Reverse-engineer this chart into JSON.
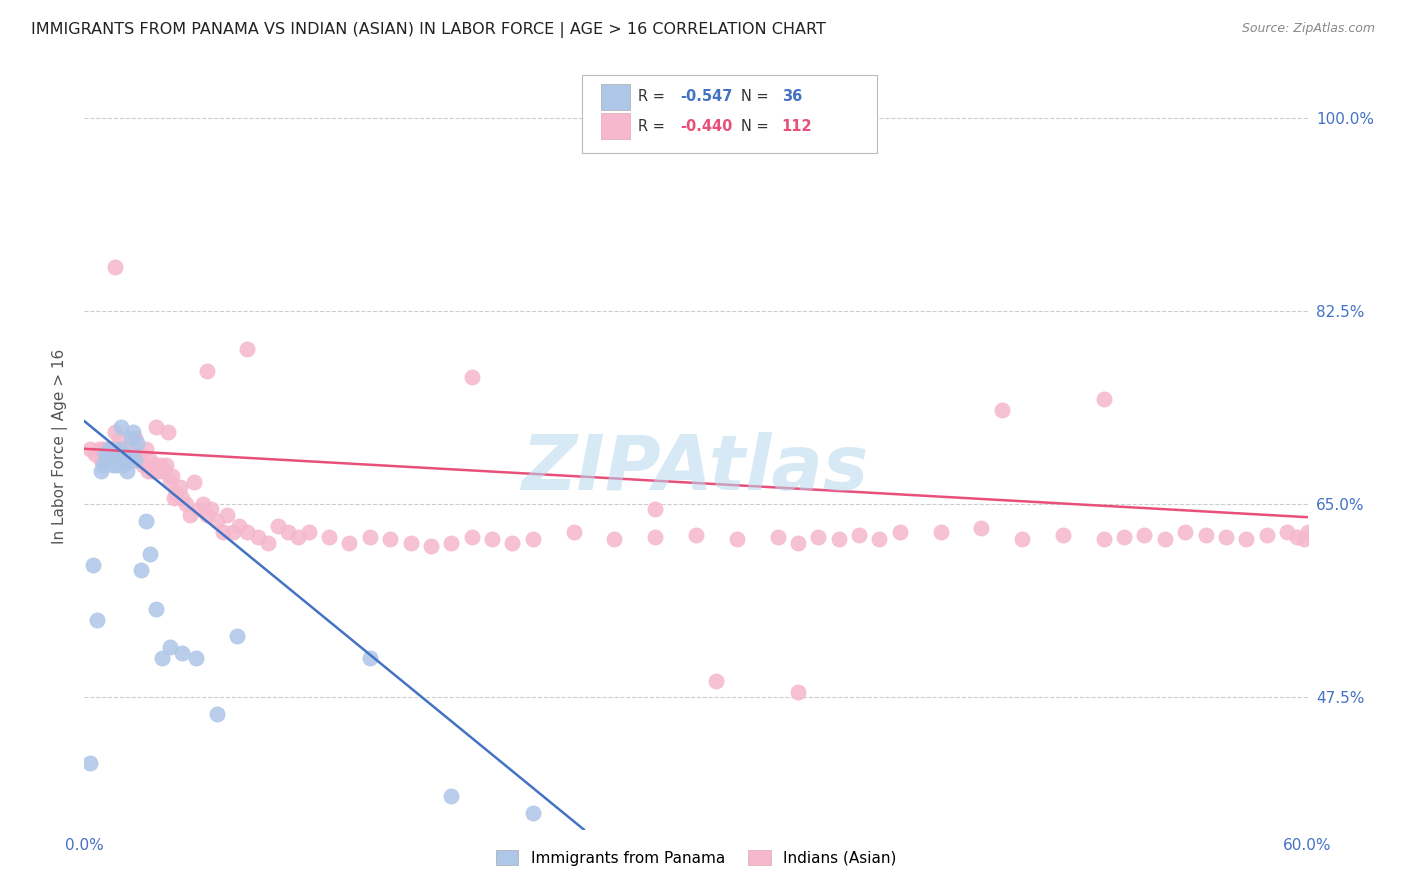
{
  "title": "IMMIGRANTS FROM PANAMA VS INDIAN (ASIAN) IN LABOR FORCE | AGE > 16 CORRELATION CHART",
  "source": "Source: ZipAtlas.com",
  "ylabel": "In Labor Force | Age > 16",
  "ytick_labels": [
    "47.5%",
    "65.0%",
    "82.5%",
    "100.0%"
  ],
  "ytick_values": [
    0.475,
    0.65,
    0.825,
    1.0
  ],
  "xlim": [
    0.0,
    0.6
  ],
  "ylim": [
    0.355,
    1.05
  ],
  "legend_label_blue": "Immigrants from Panama",
  "legend_label_pink": "Indians (Asian)",
  "blue_color": "#aec6e8",
  "pink_color": "#f5b8cc",
  "blue_line_color": "#4472c4",
  "pink_line_color": "#e8507a",
  "blue_r": "-0.547",
  "blue_n": "36",
  "pink_r": "-0.440",
  "pink_n": "112",
  "watermark_color": "#b8d8f0",
  "background_color": "#ffffff",
  "blue_scatter_x": [
    0.003,
    0.004,
    0.006,
    0.008,
    0.009,
    0.01,
    0.011,
    0.012,
    0.013,
    0.014,
    0.015,
    0.016,
    0.017,
    0.018,
    0.018,
    0.019,
    0.02,
    0.021,
    0.022,
    0.023,
    0.024,
    0.025,
    0.026,
    0.028,
    0.03,
    0.032,
    0.035,
    0.038,
    0.042,
    0.048,
    0.055,
    0.065,
    0.075,
    0.14,
    0.18,
    0.22
  ],
  "blue_scatter_y": [
    0.415,
    0.595,
    0.545,
    0.68,
    0.685,
    0.695,
    0.69,
    0.7,
    0.695,
    0.685,
    0.695,
    0.685,
    0.7,
    0.695,
    0.72,
    0.685,
    0.695,
    0.68,
    0.69,
    0.71,
    0.715,
    0.69,
    0.705,
    0.59,
    0.635,
    0.605,
    0.555,
    0.51,
    0.52,
    0.515,
    0.51,
    0.46,
    0.53,
    0.51,
    0.385,
    0.37
  ],
  "pink_scatter_x": [
    0.003,
    0.005,
    0.007,
    0.008,
    0.009,
    0.01,
    0.011,
    0.012,
    0.013,
    0.014,
    0.015,
    0.015,
    0.016,
    0.017,
    0.018,
    0.019,
    0.02,
    0.021,
    0.022,
    0.023,
    0.024,
    0.025,
    0.026,
    0.027,
    0.028,
    0.029,
    0.03,
    0.031,
    0.032,
    0.033,
    0.034,
    0.035,
    0.036,
    0.037,
    0.038,
    0.039,
    0.04,
    0.041,
    0.042,
    0.043,
    0.044,
    0.045,
    0.047,
    0.048,
    0.05,
    0.052,
    0.054,
    0.056,
    0.058,
    0.06,
    0.062,
    0.065,
    0.068,
    0.07,
    0.073,
    0.076,
    0.08,
    0.085,
    0.09,
    0.095,
    0.1,
    0.105,
    0.11,
    0.12,
    0.13,
    0.14,
    0.15,
    0.16,
    0.17,
    0.18,
    0.19,
    0.2,
    0.21,
    0.22,
    0.24,
    0.26,
    0.28,
    0.3,
    0.32,
    0.34,
    0.35,
    0.36,
    0.37,
    0.38,
    0.39,
    0.4,
    0.42,
    0.44,
    0.46,
    0.48,
    0.5,
    0.51,
    0.52,
    0.53,
    0.54,
    0.55,
    0.56,
    0.57,
    0.58,
    0.59,
    0.595,
    0.598,
    0.6,
    0.015,
    0.06,
    0.08,
    0.35,
    0.5,
    0.28,
    0.45,
    0.31,
    0.19
  ],
  "pink_scatter_y": [
    0.7,
    0.695,
    0.7,
    0.69,
    0.7,
    0.695,
    0.7,
    0.695,
    0.7,
    0.695,
    0.715,
    0.7,
    0.7,
    0.71,
    0.695,
    0.7,
    0.69,
    0.7,
    0.695,
    0.69,
    0.695,
    0.71,
    0.69,
    0.695,
    0.69,
    0.685,
    0.7,
    0.68,
    0.69,
    0.68,
    0.685,
    0.72,
    0.68,
    0.685,
    0.68,
    0.68,
    0.685,
    0.715,
    0.67,
    0.675,
    0.655,
    0.66,
    0.665,
    0.655,
    0.65,
    0.64,
    0.67,
    0.645,
    0.65,
    0.64,
    0.645,
    0.635,
    0.625,
    0.64,
    0.625,
    0.63,
    0.625,
    0.62,
    0.615,
    0.63,
    0.625,
    0.62,
    0.625,
    0.62,
    0.615,
    0.62,
    0.618,
    0.615,
    0.612,
    0.615,
    0.62,
    0.618,
    0.615,
    0.618,
    0.625,
    0.618,
    0.62,
    0.622,
    0.618,
    0.62,
    0.615,
    0.62,
    0.618,
    0.622,
    0.618,
    0.625,
    0.625,
    0.628,
    0.618,
    0.622,
    0.618,
    0.62,
    0.622,
    0.618,
    0.625,
    0.622,
    0.62,
    0.618,
    0.622,
    0.625,
    0.62,
    0.618,
    0.625,
    0.865,
    0.77,
    0.79,
    0.48,
    0.745,
    0.645,
    0.735,
    0.49,
    0.765
  ],
  "blue_line_x": [
    0.0,
    0.245
  ],
  "blue_line_y": [
    0.725,
    0.355
  ],
  "pink_line_x": [
    0.0,
    0.6
  ],
  "pink_line_y": [
    0.7,
    0.638
  ]
}
